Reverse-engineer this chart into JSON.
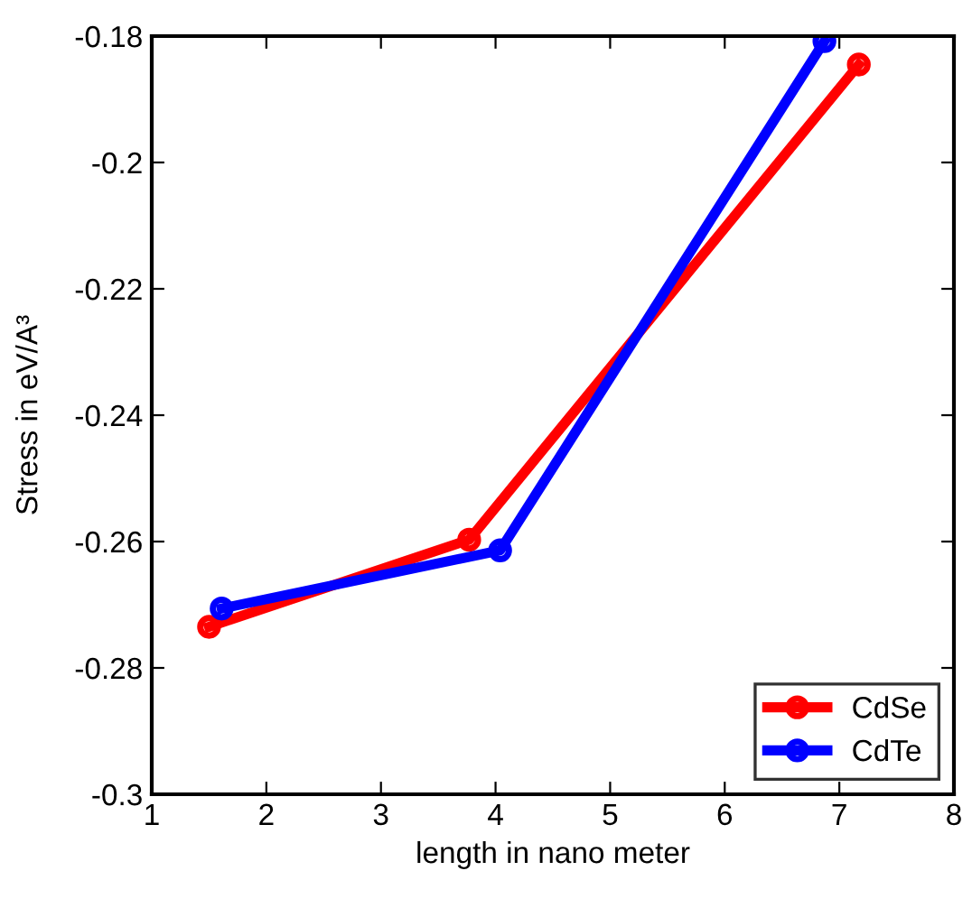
{
  "chart_data": {
    "type": "line",
    "xlabel": "length in nano meter",
    "ylabel": "Stress in eV/A³",
    "series": [
      {
        "name": "CdSe",
        "color": "#ff0000",
        "x": [
          1.5,
          3.77,
          7.17
        ],
        "values": [
          -0.2735,
          -0.2597,
          -0.1845
        ]
      },
      {
        "name": "CdTe",
        "color": "#0000ff",
        "x": [
          1.61,
          4.04,
          6.87
        ],
        "values": [
          -0.2706,
          -0.2614,
          -0.1808
        ]
      }
    ],
    "xlim": [
      1,
      8
    ],
    "xticks": [
      1,
      2,
      3,
      4,
      5,
      6,
      7,
      8
    ],
    "ylim": [
      -0.3,
      -0.18
    ],
    "yticks": [
      -0.3,
      -0.28,
      -0.26,
      -0.24,
      -0.22,
      -0.2,
      -0.18
    ],
    "legend": "bottom right",
    "marker": "circle",
    "line_style": "solid"
  }
}
